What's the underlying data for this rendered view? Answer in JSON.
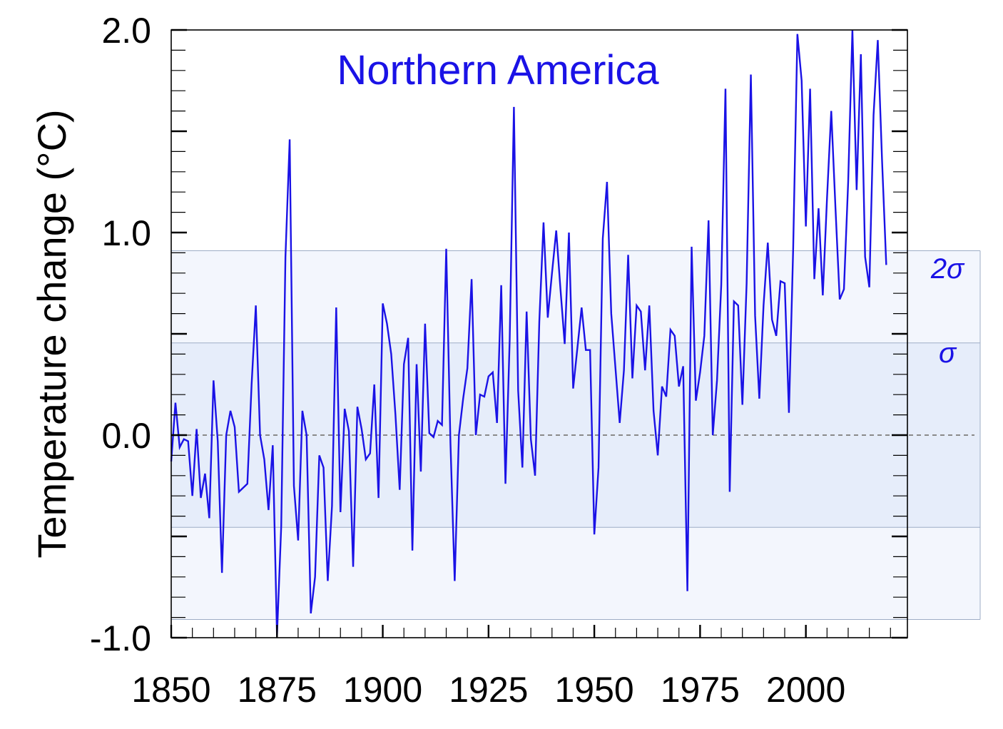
{
  "chart_data": {
    "type": "line",
    "title": "Northern America",
    "ylabel": "Temperature change (°C)",
    "xlabel": "",
    "xlim": [
      1850,
      2024
    ],
    "ylim": [
      -1.0,
      2.0
    ],
    "x_ticks": [
      1850,
      1875,
      1900,
      1925,
      1950,
      1975,
      2000
    ],
    "x_tick_labels": [
      "1850",
      "1875",
      "1900",
      "1925",
      "1950",
      "1975",
      "2000"
    ],
    "y_ticks": [
      -1.0,
      0.0,
      1.0,
      2.0
    ],
    "y_tick_labels": [
      "-1.0",
      "0.0",
      "1.0",
      "2.0"
    ],
    "sigma": 0.455,
    "two_sigma": 0.91,
    "band_labels": {
      "sigma": "σ",
      "two_sigma": "2σ"
    },
    "zero_line": true,
    "colors": {
      "series": "#1a12e6",
      "title": "#1a12e6",
      "band_outer": "#f3f6fd",
      "band_inner": "#e6edfa",
      "band_edge": "#9eadc6",
      "zero_line": "#8a8a8a",
      "axis": "#000000"
    },
    "series": [
      {
        "x_start": 1850,
        "x_step": 1,
        "values": [
          -0.13,
          0.16,
          -0.06,
          -0.02,
          -0.03,
          -0.3,
          0.03,
          -0.31,
          -0.19,
          -0.41,
          0.27,
          -0.03,
          -0.68,
          0.0,
          0.12,
          0.04,
          -0.28,
          -0.26,
          -0.24,
          0.25,
          0.64,
          0.0,
          -0.12,
          -0.37,
          -0.05,
          -0.99,
          -0.45,
          0.88,
          1.46,
          -0.25,
          -0.52,
          0.12,
          0.0,
          -0.88,
          -0.7,
          -0.1,
          -0.16,
          -0.72,
          -0.35,
          0.63,
          -0.38,
          0.13,
          0.02,
          -0.65,
          0.14,
          0.03,
          -0.12,
          -0.09,
          0.25,
          -0.31,
          0.65,
          0.55,
          0.4,
          0.1,
          -0.27,
          0.35,
          0.48,
          -0.57,
          0.35,
          -0.18,
          0.55,
          0.01,
          -0.01,
          0.07,
          0.05,
          0.92,
          -0.04,
          -0.72,
          0.0,
          0.18,
          0.33,
          0.77,
          0.0,
          0.2,
          0.19,
          0.29,
          0.31,
          0.06,
          0.74,
          -0.24,
          0.47,
          1.62,
          0.22,
          -0.16,
          0.61,
          -0.02,
          -0.2,
          0.56,
          1.05,
          0.58,
          0.8,
          1.01,
          0.72,
          0.45,
          1.0,
          0.23,
          0.43,
          0.63,
          0.42,
          0.42,
          -0.49,
          -0.16,
          0.97,
          1.25,
          0.6,
          0.33,
          0.06,
          0.32,
          0.89,
          0.28,
          0.64,
          0.61,
          0.32,
          0.64,
          0.12,
          -0.1,
          0.24,
          0.19,
          0.52,
          0.49,
          0.24,
          0.34,
          -0.77,
          0.93,
          0.17,
          0.31,
          0.49,
          1.06,
          0.0,
          0.27,
          0.74,
          1.71,
          -0.28,
          0.66,
          0.64,
          0.15,
          0.75,
          1.78,
          0.59,
          0.18,
          0.64,
          0.95,
          0.57,
          0.49,
          0.76,
          0.75,
          0.11,
          0.92,
          1.98,
          1.75,
          1.03,
          1.71,
          0.77,
          1.12,
          0.69,
          1.17,
          1.6,
          1.12,
          0.67,
          0.72,
          1.25,
          2.0,
          1.21,
          1.88,
          0.88,
          0.73,
          1.58,
          1.95,
          1.36,
          0.84
        ]
      }
    ]
  }
}
